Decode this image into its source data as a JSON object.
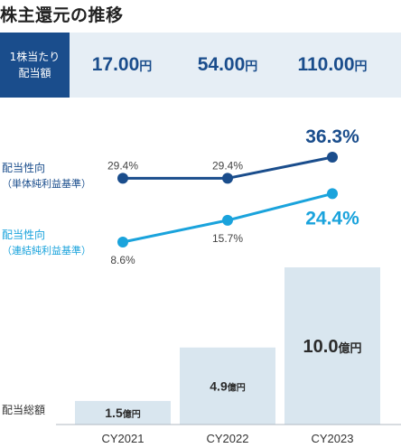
{
  "title": "株主還元の推移",
  "dps": {
    "label_line1": "1株当たり",
    "label_line2": "配当額",
    "unit": "円",
    "values": [
      "17.00",
      "54.00",
      "110.00"
    ]
  },
  "labels": {
    "payout_standalone": "配当性向",
    "payout_standalone_sub": "（単体純利益基準）",
    "payout_consolidated": "配当性向",
    "payout_consolidated_sub": "（連結純利益基準）",
    "total_dividend": "配当総額"
  },
  "colors": {
    "standalone": "#1a4d8c",
    "consolidated": "#1aa3dc",
    "bar": "#d9e6ef",
    "axis": "#b0b8c0"
  },
  "chart_data": [
    {
      "type": "line",
      "categories": [
        "CY2021",
        "CY2022",
        "CY2023"
      ],
      "series": [
        {
          "name": "配当性向（単体純利益基準）",
          "values": [
            29.4,
            29.4,
            36.3
          ],
          "labels": [
            "29.4%",
            "29.4%",
            "36.3%"
          ]
        },
        {
          "name": "配当性向（連結純利益基準）",
          "values": [
            8.6,
            15.7,
            24.4
          ],
          "labels": [
            "8.6%",
            "15.7%",
            "24.4%"
          ]
        }
      ]
    },
    {
      "type": "bar",
      "categories": [
        "CY2021",
        "CY2022",
        "CY2023"
      ],
      "values": [
        1.5,
        4.9,
        10.0
      ],
      "value_labels": [
        "1.5",
        "4.9",
        "10.0"
      ],
      "unit": "億円",
      "name": "配当総額"
    }
  ]
}
